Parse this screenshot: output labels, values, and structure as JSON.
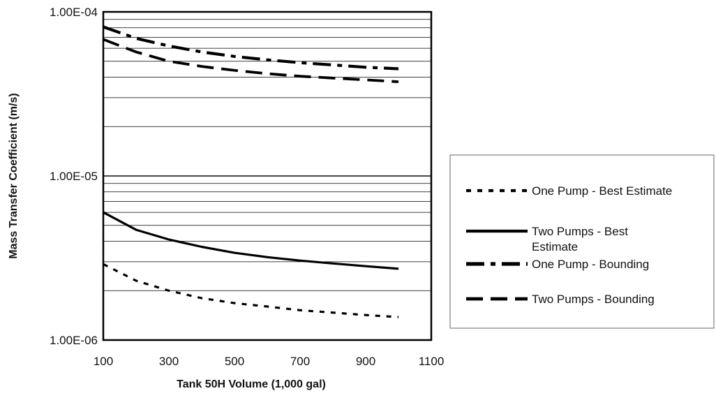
{
  "chart_data": {
    "type": "line",
    "title": "",
    "xlabel": "Tank 50H Volume (1,000 gal)",
    "ylabel": "Mass Transfer Coefficient (m/s)",
    "xlim": [
      100,
      1100
    ],
    "ylim": [
      1e-06,
      0.0001
    ],
    "y_scale": "log",
    "x_ticks": [
      "100",
      "300",
      "500",
      "700",
      "900",
      "1100"
    ],
    "x_tick_values": [
      100,
      300,
      500,
      700,
      900,
      1100
    ],
    "y_ticks": [
      "1.00E-06",
      "1.00E-05",
      "1.00E-04"
    ],
    "y_tick_values": [
      1e-06,
      1e-05,
      0.0001
    ],
    "grid": "horizontal log gridlines",
    "legend_position": "right",
    "x": [
      100,
      200,
      300,
      400,
      500,
      600,
      700,
      800,
      900,
      1000
    ],
    "series": [
      {
        "name": "One Pump - Best Estimate",
        "style": "dotted",
        "values": [
          2.9e-06,
          2.3e-06,
          2e-06,
          1.8e-06,
          1.68e-06,
          1.6e-06,
          1.52e-06,
          1.47e-06,
          1.42e-06,
          1.38e-06
        ]
      },
      {
        "name_lines": [
          "Two Pumps - Best",
          "Estimate"
        ],
        "name": "Two Pumps - Best Estimate",
        "style": "solid",
        "values": [
          6e-06,
          4.7e-06,
          4.1e-06,
          3.7e-06,
          3.4e-06,
          3.2e-06,
          3.05e-06,
          2.93e-06,
          2.82e-06,
          2.72e-06
        ]
      },
      {
        "name": "One Pump - Bounding",
        "style": "long-dash-dot",
        "values": [
          8.1e-05,
          6.9e-05,
          6.2e-05,
          5.7e-05,
          5.35e-05,
          5.1e-05,
          4.9e-05,
          4.75e-05,
          4.6e-05,
          4.5e-05
        ]
      },
      {
        "name": "Two Pumps - Bounding",
        "style": "long-dash",
        "values": [
          6.8e-05,
          5.7e-05,
          5e-05,
          4.65e-05,
          4.4e-05,
          4.2e-05,
          4.05e-05,
          3.95e-05,
          3.85e-05,
          3.75e-05
        ]
      }
    ],
    "color": "#000000"
  }
}
